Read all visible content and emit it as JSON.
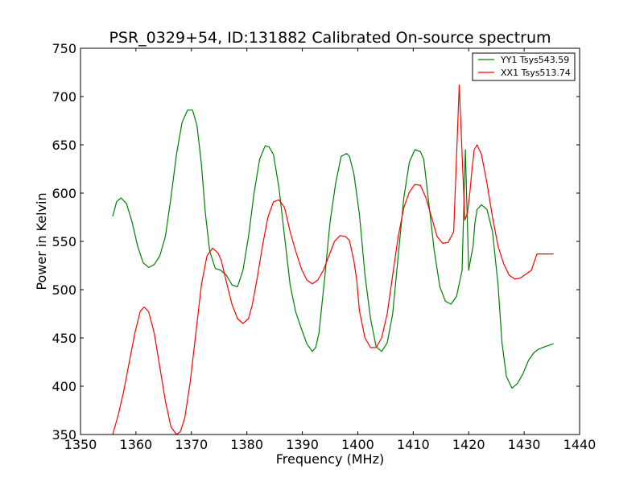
{
  "chart_data": {
    "type": "line",
    "title": "PSR_0329+54, ID:131882 Calibrated On-source spectrum",
    "xlabel": "Frequency (MHz)",
    "ylabel": "Power in Kelvin",
    "xlim": [
      1350,
      1440
    ],
    "ylim": [
      350,
      750
    ],
    "xticks": [
      1350,
      1360,
      1370,
      1380,
      1390,
      1400,
      1410,
      1420,
      1430,
      1440
    ],
    "yticks": [
      350,
      400,
      450,
      500,
      550,
      600,
      650,
      700,
      750
    ],
    "grid": false,
    "legend_position": "top-right",
    "series": [
      {
        "name": "YY1 Tsys543.59",
        "color": "#008000",
        "x": [
          1355.8,
          1356.5,
          1357.3,
          1358.3,
          1359.3,
          1360.3,
          1361.3,
          1362.3,
          1363.3,
          1364.3,
          1365.3,
          1366.3,
          1367.3,
          1368.3,
          1369.3,
          1370.2,
          1371.0,
          1371.8,
          1372.5,
          1373.3,
          1374.3,
          1375.3,
          1376.3,
          1377.3,
          1378.3,
          1379.3,
          1380.3,
          1381.3,
          1382.3,
          1383.3,
          1384.0,
          1384.8,
          1385.8,
          1386.8,
          1387.8,
          1388.8,
          1389.8,
          1390.8,
          1391.8,
          1392.4,
          1393.0,
          1394.0,
          1395.0,
          1396.0,
          1397.0,
          1398.0,
          1398.5,
          1399.3,
          1400.3,
          1401.3,
          1402.3,
          1403.3,
          1404.3,
          1405.3,
          1406.3,
          1407.3,
          1408.3,
          1409.3,
          1410.3,
          1411.3,
          1411.9,
          1412.8,
          1413.8,
          1414.8,
          1415.8,
          1416.8,
          1417.8,
          1418.8,
          1419.4,
          1420.0,
          1420.3,
          1420.8,
          1421.1,
          1421.5,
          1422.3,
          1423.3,
          1424.3,
          1425.3,
          1426.0,
          1426.8,
          1427.8,
          1428.8,
          1429.8,
          1430.8,
          1431.8,
          1432.5,
          1433.3,
          1434.3,
          1435.3
        ],
        "values": [
          576,
          591,
          595,
          589,
          570,
          545,
          528,
          523,
          526,
          535,
          555,
          595,
          640,
          673,
          686,
          686,
          670,
          630,
          580,
          540,
          522,
          520,
          515,
          505,
          503,
          520,
          555,
          600,
          635,
          649,
          648,
          640,
          605,
          555,
          505,
          477,
          460,
          444,
          436,
          440,
          455,
          510,
          570,
          610,
          638,
          641,
          638,
          620,
          578,
          515,
          470,
          441,
          436,
          445,
          475,
          535,
          595,
          632,
          645,
          643,
          635,
          590,
          540,
          503,
          488,
          485,
          493,
          520,
          645,
          520,
          530,
          545,
          568,
          583,
          588,
          583,
          560,
          505,
          445,
          410,
          398,
          403,
          413,
          427,
          435,
          438,
          440,
          442,
          444
        ]
      },
      {
        "name": "XX1 Tsys513.74",
        "color": "#ff0000",
        "x": [
          1355.8,
          1356.8,
          1357.8,
          1358.8,
          1359.8,
          1360.8,
          1361.5,
          1362.3,
          1363.3,
          1364.3,
          1365.3,
          1366.3,
          1367.3,
          1368.0,
          1368.8,
          1369.8,
          1370.8,
          1371.8,
          1372.8,
          1373.8,
          1374.8,
          1375.4,
          1376.3,
          1377.3,
          1378.3,
          1379.3,
          1380.3,
          1381.0,
          1381.8,
          1382.8,
          1383.8,
          1384.8,
          1385.8,
          1386.8,
          1387.2,
          1387.8,
          1388.8,
          1389.8,
          1390.8,
          1391.8,
          1392.8,
          1393.8,
          1394.8,
          1395.8,
          1396.8,
          1397.8,
          1398.5,
          1399.3,
          1399.8,
          1400.3,
          1401.3,
          1402.3,
          1403.3,
          1404.3,
          1405.3,
          1406.3,
          1407.3,
          1408.3,
          1409.3,
          1410.3,
          1411.3,
          1412.3,
          1413.3,
          1414.3,
          1415.3,
          1416.3,
          1417.3,
          1418.3,
          1419.3,
          1419.8,
          1420.2,
          1420.6,
          1421.0,
          1421.5,
          1422.3,
          1423.3,
          1424.3,
          1425.3,
          1426.3,
          1427.3,
          1428.3,
          1429.3,
          1430.3,
          1431.3,
          1432.3,
          1433.3,
          1434.3,
          1435.0,
          1435.3
        ],
        "values": [
          350,
          370,
          395,
          425,
          455,
          478,
          482,
          477,
          455,
          420,
          385,
          358,
          350,
          353,
          367,
          405,
          455,
          505,
          535,
          543,
          538,
          530,
          508,
          485,
          470,
          465,
          470,
          485,
          510,
          545,
          575,
          591,
          593,
          585,
          575,
          560,
          540,
          522,
          510,
          506,
          510,
          520,
          535,
          550,
          556,
          555,
          551,
          530,
          510,
          478,
          450,
          440,
          440,
          450,
          475,
          515,
          555,
          585,
          601,
          609,
          608,
          595,
          575,
          555,
          548,
          549,
          560,
          712,
          572,
          580,
          600,
          625,
          645,
          650,
          640,
          610,
          575,
          545,
          527,
          515,
          511,
          512,
          516,
          520,
          537,
          537,
          537,
          537,
          537
        ]
      }
    ]
  }
}
